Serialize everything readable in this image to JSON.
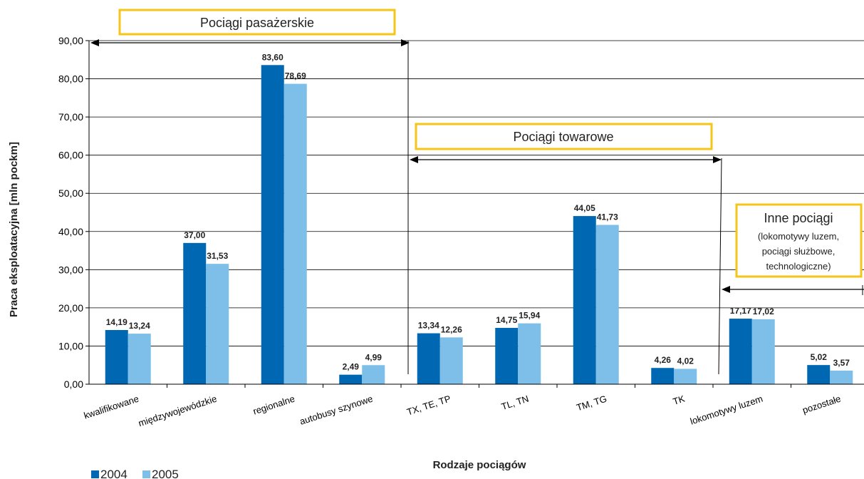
{
  "chart_data": {
    "type": "bar",
    "xlabel": "Rodzaje pociągów",
    "ylabel": "Praca eksploatacyjna [mln pockm]",
    "ylim": [
      0,
      90
    ],
    "yticks": [
      "0,00",
      "10,00",
      "20,00",
      "30,00",
      "40,00",
      "50,00",
      "60,00",
      "70,00",
      "80,00",
      "90,00"
    ],
    "categories": [
      "kwalifikowane",
      "międzywojewódzkie",
      "regionalne",
      "autobusy szynowe",
      "TX, TE, TP",
      "TL, TN",
      "TM, TG",
      "TK",
      "lokomotywy luzem",
      "pozostałe"
    ],
    "series": [
      {
        "name": "2004",
        "color": "#0068b3",
        "values": [
          14.19,
          37.0,
          83.6,
          2.49,
          13.34,
          14.75,
          44.05,
          4.26,
          17.17,
          5.02
        ],
        "labels": [
          "14,19",
          "37,00",
          "83,60",
          "2,49",
          "13,34",
          "14,75",
          "44,05",
          "4,26",
          "17,17",
          "5,02"
        ]
      },
      {
        "name": "2005",
        "color": "#7dbfe8",
        "values": [
          13.24,
          31.53,
          78.69,
          4.99,
          12.26,
          15.94,
          41.73,
          4.02,
          17.02,
          3.57
        ],
        "labels": [
          "13,24",
          "31,53",
          "78,69",
          "4,99",
          "12,26",
          "15,94",
          "41,73",
          "4,02",
          "17,02",
          "3,57"
        ]
      }
    ],
    "grid": true,
    "legend_position": "bottom-left",
    "annotations": [
      {
        "title": "Pociągi pasażerskie",
        "lines": []
      },
      {
        "title": "Pociągi towarowe",
        "lines": []
      },
      {
        "title": "Inne pociągi",
        "lines": [
          "(lokomotywy luzem,",
          "pociągi służbowe,",
          "technologiczne)"
        ]
      }
    ],
    "annotation_border_color": "#f5c518"
  }
}
